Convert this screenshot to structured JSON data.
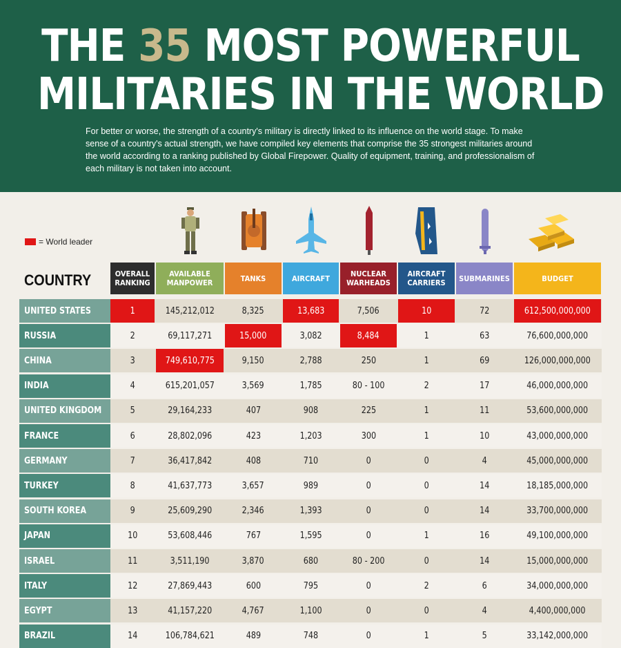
{
  "header": {
    "title_pre": "THE ",
    "title_num": "35",
    "title_post": " MOST POWERFUL",
    "title_line2": "MILITARIES IN THE WORLD",
    "intro": "For better or worse, the strength of a country's military is directly linked to its influence on the world stage. To make sense of a country's actual strength, we have compiled key elements that comprise the 35 strongest militaries around the world according to a ranking published by Global Firepower. Quality of equipment, training, and professionalism of each military is not taken into account."
  },
  "legend": {
    "label": "= World leader"
  },
  "country_label": "COUNTRY",
  "columns": [
    {
      "key": "rank",
      "label": "OVERALL RANKING",
      "color": "#2d2d2d"
    },
    {
      "key": "manpower",
      "label": "AVAILABLE MANPOWER",
      "color": "#8fae5a"
    },
    {
      "key": "tanks",
      "label": "TANKS",
      "color": "#e5812b"
    },
    {
      "key": "aircraft",
      "label": "AIRCRAFT",
      "color": "#3fa8dd"
    },
    {
      "key": "nuclear",
      "label": "NUCLEAR WARHEADS",
      "color": "#98202a"
    },
    {
      "key": "carriers",
      "label": "AIRCRAFT CARRIERS",
      "color": "#23578a"
    },
    {
      "key": "subs",
      "label": "SUBMARINES",
      "color": "#8a86c7"
    },
    {
      "key": "budget",
      "label": "BUDGET",
      "color": "#f4b51b"
    }
  ],
  "icons": [
    "soldier-icon",
    "tank-icon",
    "fighter-jet-icon",
    "warhead-icon",
    "carrier-icon",
    "submarine-icon",
    "gold-bars-icon"
  ],
  "colors": {
    "leader": "#e01616",
    "country_dark": "#4b8a7c",
    "country_light": "#77a398"
  },
  "rows": [
    {
      "country": "UNITED STATES",
      "rank": "1",
      "manpower": "145,212,012",
      "tanks": "8,325",
      "aircraft": "13,683",
      "nuclear": "7,506",
      "carriers": "10",
      "subs": "72",
      "budget": "612,500,000,000",
      "leader": [
        "rank",
        "aircraft",
        "carriers",
        "budget"
      ]
    },
    {
      "country": "RUSSIA",
      "rank": "2",
      "manpower": "69,117,271",
      "tanks": "15,000",
      "aircraft": "3,082",
      "nuclear": "8,484",
      "carriers": "1",
      "subs": "63",
      "budget": "76,600,000,000",
      "leader": [
        "tanks",
        "nuclear"
      ]
    },
    {
      "country": "CHINA",
      "rank": "3",
      "manpower": "749,610,775",
      "tanks": "9,150",
      "aircraft": "2,788",
      "nuclear": "250",
      "carriers": "1",
      "subs": "69",
      "budget": "126,000,000,000",
      "leader": [
        "manpower"
      ]
    },
    {
      "country": "INDIA",
      "rank": "4",
      "manpower": "615,201,057",
      "tanks": "3,569",
      "aircraft": "1,785",
      "nuclear": "80 - 100",
      "carriers": "2",
      "subs": "17",
      "budget": "46,000,000,000",
      "leader": []
    },
    {
      "country": "UNITED KINGDOM",
      "rank": "5",
      "manpower": "29,164,233",
      "tanks": "407",
      "aircraft": "908",
      "nuclear": "225",
      "carriers": "1",
      "subs": "11",
      "budget": "53,600,000,000",
      "leader": []
    },
    {
      "country": "FRANCE",
      "rank": "6",
      "manpower": "28,802,096",
      "tanks": "423",
      "aircraft": "1,203",
      "nuclear": "300",
      "carriers": "1",
      "subs": "10",
      "budget": "43,000,000,000",
      "leader": []
    },
    {
      "country": "GERMANY",
      "rank": "7",
      "manpower": "36,417,842",
      "tanks": "408",
      "aircraft": "710",
      "nuclear": "0",
      "carriers": "0",
      "subs": "4",
      "budget": "45,000,000,000",
      "leader": []
    },
    {
      "country": "TURKEY",
      "rank": "8",
      "manpower": "41,637,773",
      "tanks": "3,657",
      "aircraft": "989",
      "nuclear": "0",
      "carriers": "0",
      "subs": "14",
      "budget": "18,185,000,000",
      "leader": []
    },
    {
      "country": "SOUTH KOREA",
      "rank": "9",
      "manpower": "25,609,290",
      "tanks": "2,346",
      "aircraft": "1,393",
      "nuclear": "0",
      "carriers": "0",
      "subs": "14",
      "budget": "33,700,000,000",
      "leader": []
    },
    {
      "country": "JAPAN",
      "rank": "10",
      "manpower": "53,608,446",
      "tanks": "767",
      "aircraft": "1,595",
      "nuclear": "0",
      "carriers": "1",
      "subs": "16",
      "budget": "49,100,000,000",
      "leader": []
    },
    {
      "country": "ISRAEL",
      "rank": "11",
      "manpower": "3,511,190",
      "tanks": "3,870",
      "aircraft": "680",
      "nuclear": "80 - 200",
      "carriers": "0",
      "subs": "14",
      "budget": "15,000,000,000",
      "leader": []
    },
    {
      "country": "ITALY",
      "rank": "12",
      "manpower": "27,869,443",
      "tanks": "600",
      "aircraft": "795",
      "nuclear": "0",
      "carriers": "2",
      "subs": "6",
      "budget": "34,000,000,000",
      "leader": []
    },
    {
      "country": "EGYPT",
      "rank": "13",
      "manpower": "41,157,220",
      "tanks": "4,767",
      "aircraft": "1,100",
      "nuclear": "0",
      "carriers": "0",
      "subs": "4",
      "budget": "4,400,000,000",
      "leader": []
    },
    {
      "country": "BRAZIL",
      "rank": "14",
      "manpower": "106,784,621",
      "tanks": "489",
      "aircraft": "748",
      "nuclear": "0",
      "carriers": "1",
      "subs": "5",
      "budget": "33,142,000,000",
      "leader": []
    }
  ]
}
